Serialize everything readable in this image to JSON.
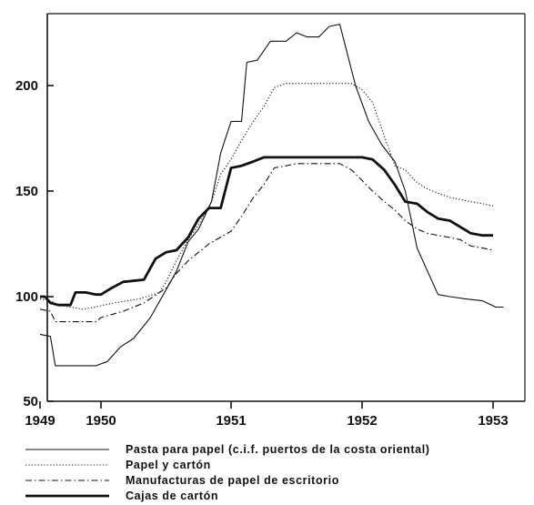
{
  "chart_data": {
    "type": "line",
    "title": "",
    "xlabel": "",
    "ylabel": "",
    "xlim": [
      1949.0,
      1953.3
    ],
    "ylim": [
      50,
      230
    ],
    "x_ticks": [
      {
        "value": 1949,
        "label": "1949"
      },
      {
        "value": 1950,
        "label": "1950"
      },
      {
        "value": 1951,
        "label": "1951"
      },
      {
        "value": 1952,
        "label": "1952"
      },
      {
        "value": 1953,
        "label": "1953"
      }
    ],
    "y_ticks": [
      {
        "value": 50,
        "label": "50"
      },
      {
        "value": 100,
        "label": "100"
      },
      {
        "value": 150,
        "label": "150"
      },
      {
        "value": 200,
        "label": "200"
      }
    ],
    "grid": false,
    "legend_position": "bottom",
    "series": [
      {
        "name": "Pasta para papel (c.i.f. puertos de la costa oriental)",
        "style": "thin-solid",
        "points": [
          [
            1949.0,
            82
          ],
          [
            1949.17,
            81
          ],
          [
            1949.25,
            67
          ],
          [
            1949.5,
            67
          ],
          [
            1949.8,
            67
          ],
          [
            1949.92,
            67
          ],
          [
            1950.05,
            69
          ],
          [
            1950.15,
            76
          ],
          [
            1950.25,
            80
          ],
          [
            1950.38,
            90
          ],
          [
            1950.48,
            101
          ],
          [
            1950.58,
            112
          ],
          [
            1950.67,
            126
          ],
          [
            1950.75,
            132
          ],
          [
            1950.85,
            145
          ],
          [
            1950.92,
            168
          ],
          [
            1951.0,
            183
          ],
          [
            1951.08,
            183
          ],
          [
            1951.12,
            211
          ],
          [
            1951.2,
            212
          ],
          [
            1951.3,
            221
          ],
          [
            1951.42,
            221
          ],
          [
            1951.5,
            225
          ],
          [
            1951.58,
            223
          ],
          [
            1951.67,
            223
          ],
          [
            1951.75,
            228
          ],
          [
            1951.83,
            229
          ],
          [
            1951.95,
            200
          ],
          [
            1952.05,
            183
          ],
          [
            1952.15,
            172
          ],
          [
            1952.25,
            164
          ],
          [
            1952.33,
            150
          ],
          [
            1952.42,
            123
          ],
          [
            1952.5,
            112
          ],
          [
            1952.58,
            101
          ],
          [
            1952.67,
            100
          ],
          [
            1952.78,
            99
          ],
          [
            1952.92,
            98
          ],
          [
            1953.02,
            95
          ],
          [
            1953.08,
            95
          ]
        ]
      },
      {
        "name": "Papel y cartón",
        "style": "dotted",
        "points": [
          [
            1949.0,
            99
          ],
          [
            1949.17,
            98
          ],
          [
            1949.3,
            96
          ],
          [
            1949.5,
            95
          ],
          [
            1949.7,
            94
          ],
          [
            1949.9,
            95
          ],
          [
            1950.1,
            97
          ],
          [
            1950.3,
            99
          ],
          [
            1950.45,
            102
          ],
          [
            1950.5,
            107
          ],
          [
            1950.58,
            117
          ],
          [
            1950.67,
            127
          ],
          [
            1950.75,
            134
          ],
          [
            1950.85,
            145
          ],
          [
            1950.92,
            158
          ],
          [
            1951.0,
            165
          ],
          [
            1951.08,
            174
          ],
          [
            1951.17,
            183
          ],
          [
            1951.25,
            190
          ],
          [
            1951.33,
            199
          ],
          [
            1951.42,
            201
          ],
          [
            1951.58,
            201
          ],
          [
            1951.67,
            201
          ],
          [
            1951.83,
            201
          ],
          [
            1951.92,
            201
          ],
          [
            1952.0,
            198
          ],
          [
            1952.08,
            192
          ],
          [
            1952.17,
            176
          ],
          [
            1952.25,
            162
          ],
          [
            1952.33,
            160
          ],
          [
            1952.42,
            154
          ],
          [
            1952.5,
            151
          ],
          [
            1952.58,
            149
          ],
          [
            1952.67,
            147
          ],
          [
            1952.75,
            146
          ],
          [
            1952.83,
            145
          ],
          [
            1952.92,
            144
          ],
          [
            1953.0,
            143
          ]
        ]
      },
      {
        "name": "Manufacturas de papel de escritorio",
        "style": "dash-dot",
        "points": [
          [
            1949.0,
            94
          ],
          [
            1949.17,
            93
          ],
          [
            1949.25,
            88
          ],
          [
            1949.5,
            88
          ],
          [
            1949.75,
            88
          ],
          [
            1949.92,
            88
          ],
          [
            1950.0,
            90
          ],
          [
            1950.17,
            93
          ],
          [
            1950.33,
            97
          ],
          [
            1950.5,
            104
          ],
          [
            1950.58,
            111
          ],
          [
            1950.67,
            117
          ],
          [
            1950.83,
            125
          ],
          [
            1951.0,
            131
          ],
          [
            1951.08,
            138
          ],
          [
            1951.17,
            147
          ],
          [
            1951.25,
            153
          ],
          [
            1951.33,
            161
          ],
          [
            1951.42,
            162
          ],
          [
            1951.5,
            163
          ],
          [
            1951.67,
            163
          ],
          [
            1951.83,
            163
          ],
          [
            1951.92,
            160
          ],
          [
            1952.0,
            155
          ],
          [
            1952.08,
            150
          ],
          [
            1952.17,
            145
          ],
          [
            1952.25,
            141
          ],
          [
            1952.33,
            136
          ],
          [
            1952.42,
            132
          ],
          [
            1952.5,
            130
          ],
          [
            1952.58,
            129
          ],
          [
            1952.67,
            128
          ],
          [
            1952.75,
            127
          ],
          [
            1952.83,
            124
          ],
          [
            1952.92,
            123
          ],
          [
            1953.0,
            122
          ]
        ]
      },
      {
        "name": "Cajas de cartón",
        "style": "thick-solid",
        "points": [
          [
            1949.0,
            100
          ],
          [
            1949.08,
            100
          ],
          [
            1949.17,
            97
          ],
          [
            1949.3,
            96
          ],
          [
            1949.5,
            96
          ],
          [
            1949.58,
            102
          ],
          [
            1949.75,
            102
          ],
          [
            1949.92,
            101
          ],
          [
            1950.0,
            101
          ],
          [
            1950.08,
            104
          ],
          [
            1950.17,
            107
          ],
          [
            1950.33,
            108
          ],
          [
            1950.42,
            118
          ],
          [
            1950.5,
            121
          ],
          [
            1950.58,
            122
          ],
          [
            1950.67,
            128
          ],
          [
            1950.75,
            137
          ],
          [
            1950.83,
            142
          ],
          [
            1950.92,
            142
          ],
          [
            1951.0,
            161
          ],
          [
            1951.08,
            162
          ],
          [
            1951.17,
            164
          ],
          [
            1951.25,
            166
          ],
          [
            1951.33,
            166
          ],
          [
            1951.5,
            166
          ],
          [
            1951.67,
            166
          ],
          [
            1951.83,
            166
          ],
          [
            1951.92,
            166
          ],
          [
            1952.0,
            166
          ],
          [
            1952.08,
            165
          ],
          [
            1952.17,
            160
          ],
          [
            1952.25,
            153
          ],
          [
            1952.33,
            145
          ],
          [
            1952.42,
            144
          ],
          [
            1952.5,
            140
          ],
          [
            1952.58,
            137
          ],
          [
            1952.67,
            136
          ],
          [
            1952.75,
            133
          ],
          [
            1952.83,
            130
          ],
          [
            1952.92,
            129
          ],
          [
            1953.0,
            129
          ]
        ]
      }
    ]
  }
}
